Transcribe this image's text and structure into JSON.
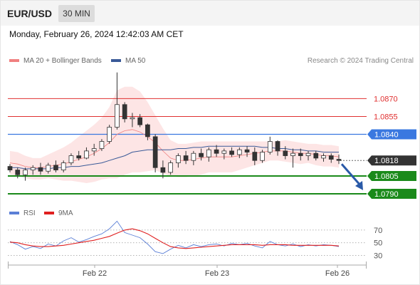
{
  "header": {
    "symbol": "EUR/USD",
    "timeframe": "30 MIN",
    "datetime": "Monday, February 26, 2024 12:42:03 AM CET",
    "attribution": "Research © 2024 Trading Central"
  },
  "legend": {
    "ma20_label": "MA 20 + Bollinger Bands",
    "ma20_color": "#f08080",
    "ma50_label": "MA 50",
    "ma50_color": "#3a5a98"
  },
  "rsi_legend": {
    "rsi_label": "RSI",
    "rsi_color": "#5b7fd6",
    "ma9_label": "9MA",
    "ma9_color": "#e02020"
  },
  "chart_data": [
    {
      "type": "candlestick",
      "title": "EUR/USD 30 MIN",
      "x_ticks": [
        "Feb 22",
        "Feb 23",
        "Feb 26"
      ],
      "ylim": [
        1.0784,
        1.0896
      ],
      "resistance_levels": [
        {
          "value": 1.087,
          "label": "1.0870",
          "color": "#e03030"
        },
        {
          "value": 1.0855,
          "label": "1.0855",
          "color": "#e03030"
        }
      ],
      "pivot": {
        "value": 1.084,
        "label": "1.0840",
        "color": "#3a78e0"
      },
      "current_price": {
        "value": 1.0818,
        "label": "1.0818",
        "color": "#333333"
      },
      "support_levels": [
        {
          "value": 1.0805,
          "label": "1.0805",
          "color": "#1a8a1a"
        },
        {
          "value": 1.079,
          "label": "1.0790",
          "color": "#1a8a1a"
        }
      ],
      "forecast_arrow": {
        "from": 1.0815,
        "to": 1.0793,
        "color": "#2a5aa8"
      },
      "ma20_series": [
        1.0816,
        1.0815,
        1.0813,
        1.0812,
        1.0812,
        1.0813,
        1.0814,
        1.0815,
        1.0817,
        1.0819,
        1.0821,
        1.0824,
        1.0828,
        1.0833,
        1.084,
        1.0843,
        1.0844,
        1.0842,
        1.0838,
        1.0833,
        1.0826,
        1.082,
        1.0818,
        1.0818,
        1.0819,
        1.082,
        1.0821,
        1.0821,
        1.0821,
        1.0821,
        1.0822,
        1.0823,
        1.0824,
        1.0825,
        1.0826,
        1.0826,
        1.0826,
        1.0825,
        1.0824,
        1.0824,
        1.0823,
        1.0822,
        1.0822,
        1.0821
      ],
      "ma50_series": [
        1.0812,
        1.0812,
        1.0811,
        1.0811,
        1.0811,
        1.0811,
        1.0812,
        1.0812,
        1.0813,
        1.0813,
        1.0814,
        1.0815,
        1.0816,
        1.0818,
        1.082,
        1.0822,
        1.0825,
        1.0826,
        1.0827,
        1.0827,
        1.0827,
        1.0827,
        1.0828,
        1.0828,
        1.0829,
        1.0829,
        1.083,
        1.083,
        1.083,
        1.083,
        1.083,
        1.083,
        1.083,
        1.0829,
        1.0829,
        1.0828,
        1.0828,
        1.0827,
        1.0827,
        1.0826,
        1.0826,
        1.0825,
        1.0825,
        1.0825
      ],
      "bollinger_upper": [
        1.0826,
        1.0825,
        1.0822,
        1.082,
        1.082,
        1.0823,
        1.0826,
        1.0829,
        1.0833,
        1.0838,
        1.0843,
        1.0848,
        1.0854,
        1.0863,
        1.0877,
        1.088,
        1.088,
        1.0876,
        1.0867,
        1.0856,
        1.0845,
        1.0835,
        1.0832,
        1.0832,
        1.0833,
        1.0834,
        1.0834,
        1.0834,
        1.0834,
        1.0834,
        1.0834,
        1.0834,
        1.0834,
        1.0834,
        1.0834,
        1.0834,
        1.0835,
        1.0834,
        1.0833,
        1.0832,
        1.0832,
        1.0831,
        1.0831,
        1.083
      ],
      "bollinger_lower": [
        1.0806,
        1.0805,
        1.0803,
        1.0802,
        1.0802,
        1.0803,
        1.0802,
        1.0801,
        1.0801,
        1.08,
        1.0799,
        1.08,
        1.0802,
        1.0803,
        1.0803,
        1.0806,
        1.0808,
        1.0808,
        1.0809,
        1.081,
        1.0807,
        1.0805,
        1.0804,
        1.0804,
        1.0805,
        1.0806,
        1.0808,
        1.0808,
        1.0808,
        1.0808,
        1.081,
        1.0812,
        1.0814,
        1.0816,
        1.0818,
        1.0818,
        1.0817,
        1.0816,
        1.0815,
        1.0816,
        1.0814,
        1.0813,
        1.0813,
        1.0812
      ],
      "candles": [
        [
          1.0813,
          1.0815,
          1.0808,
          1.081
        ],
        [
          1.081,
          1.0812,
          1.0803,
          1.0806
        ],
        [
          1.0806,
          1.0812,
          1.0801,
          1.081
        ],
        [
          1.081,
          1.0814,
          1.0806,
          1.0812
        ],
        [
          1.0812,
          1.0816,
          1.0806,
          1.0809
        ],
        [
          1.0809,
          1.0816,
          1.0807,
          1.0814
        ],
        [
          1.0814,
          1.0818,
          1.0808,
          1.081
        ],
        [
          1.081,
          1.0818,
          1.0808,
          1.0816
        ],
        [
          1.0816,
          1.0824,
          1.0814,
          1.0822
        ],
        [
          1.0822,
          1.0826,
          1.0818,
          1.082
        ],
        [
          1.082,
          1.0829,
          1.0819,
          1.0826
        ],
        [
          1.0826,
          1.0832,
          1.0822,
          1.0828
        ],
        [
          1.0828,
          1.0836,
          1.0826,
          1.0834
        ],
        [
          1.0834,
          1.0848,
          1.0832,
          1.0846
        ],
        [
          1.0846,
          1.0892,
          1.0844,
          1.0865
        ],
        [
          1.0865,
          1.0867,
          1.085,
          1.0853
        ],
        [
          1.0853,
          1.0858,
          1.0846,
          1.0854
        ],
        [
          1.0854,
          1.0857,
          1.0846,
          1.0848
        ],
        [
          1.0848,
          1.0849,
          1.0835,
          1.0838
        ],
        [
          1.0838,
          1.084,
          1.0808,
          1.0812
        ],
        [
          1.0812,
          1.0818,
          1.0803,
          1.0808
        ],
        [
          1.0808,
          1.0818,
          1.0806,
          1.0816
        ],
        [
          1.0816,
          1.0824,
          1.0812,
          1.0822
        ],
        [
          1.0822,
          1.0826,
          1.0815,
          1.0818
        ],
        [
          1.0818,
          1.0826,
          1.0814,
          1.0824
        ],
        [
          1.0824,
          1.0828,
          1.0818,
          1.0821
        ],
        [
          1.0821,
          1.0829,
          1.0817,
          1.0827
        ],
        [
          1.0827,
          1.0831,
          1.0821,
          1.0824
        ],
        [
          1.0824,
          1.0828,
          1.0819,
          1.0826
        ],
        [
          1.0826,
          1.0829,
          1.0821,
          1.0823
        ],
        [
          1.0823,
          1.0829,
          1.082,
          1.0827
        ],
        [
          1.0827,
          1.083,
          1.0821,
          1.0825
        ],
        [
          1.0825,
          1.0829,
          1.0814,
          1.0818
        ],
        [
          1.0818,
          1.0827,
          1.0816,
          1.0825
        ],
        [
          1.0825,
          1.0838,
          1.0823,
          1.0834
        ],
        [
          1.0834,
          1.0835,
          1.0822,
          1.0826
        ],
        [
          1.0826,
          1.083,
          1.0819,
          1.0822
        ],
        [
          1.0822,
          1.0828,
          1.0812,
          1.0824
        ],
        [
          1.0824,
          1.0828,
          1.0818,
          1.0822
        ],
        [
          1.0822,
          1.0826,
          1.0818,
          1.0824
        ],
        [
          1.0824,
          1.0826,
          1.0818,
          1.082
        ],
        [
          1.082,
          1.0824,
          1.0817,
          1.0822
        ],
        [
          1.0822,
          1.0824,
          1.0816,
          1.0819
        ],
        [
          1.0819,
          1.0823,
          1.0815,
          1.0818
        ]
      ]
    },
    {
      "type": "line",
      "title": "RSI",
      "x_ticks": [
        "Feb 22",
        "Feb 23",
        "Feb 26"
      ],
      "y_ticks": [
        70,
        50,
        30
      ],
      "ylim": [
        15,
        90
      ],
      "series": [
        {
          "name": "RSI",
          "color": "#5b7fd6",
          "values": [
            52,
            47,
            40,
            44,
            41,
            48,
            45,
            53,
            58,
            51,
            55,
            60,
            64,
            72,
            84,
            66,
            62,
            58,
            48,
            36,
            33,
            40,
            46,
            42,
            47,
            44,
            47,
            48,
            45,
            49,
            47,
            49,
            45,
            42,
            52,
            47,
            45,
            48,
            44,
            47,
            45,
            47,
            46,
            44
          ]
        },
        {
          "name": "9MA",
          "color": "#e02020",
          "values": [
            51,
            50,
            47,
            45,
            44,
            44,
            45,
            46,
            48,
            50,
            52,
            54,
            57,
            60,
            65,
            70,
            72,
            69,
            64,
            57,
            50,
            44,
            42,
            41,
            42,
            43,
            44,
            45,
            46,
            47,
            47,
            47,
            47,
            46,
            47,
            47,
            47,
            46,
            46,
            46,
            46,
            46,
            46,
            45
          ]
        }
      ]
    }
  ]
}
